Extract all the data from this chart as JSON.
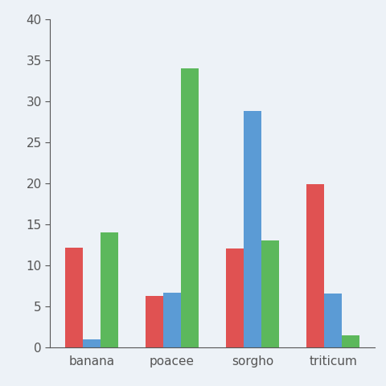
{
  "categories": [
    "banana",
    "poacee",
    "sorgho",
    "triticum"
  ],
  "series": {
    "red": [
      12.2,
      6.3,
      12.1,
      19.9
    ],
    "blue": [
      1.0,
      6.7,
      28.8,
      6.6
    ],
    "green": [
      14.0,
      34.0,
      13.0,
      1.5
    ]
  },
  "colors": {
    "red": "#e05252",
    "blue": "#5b9bd5",
    "green": "#5cb85c"
  },
  "ylim": [
    0,
    40
  ],
  "yticks": [
    0,
    5,
    10,
    15,
    20,
    25,
    30,
    35,
    40
  ],
  "background_color": "#edf2f7",
  "bar_width": 0.22,
  "tick_color": "#555555",
  "spine_color": "#555555",
  "font_size": 11
}
